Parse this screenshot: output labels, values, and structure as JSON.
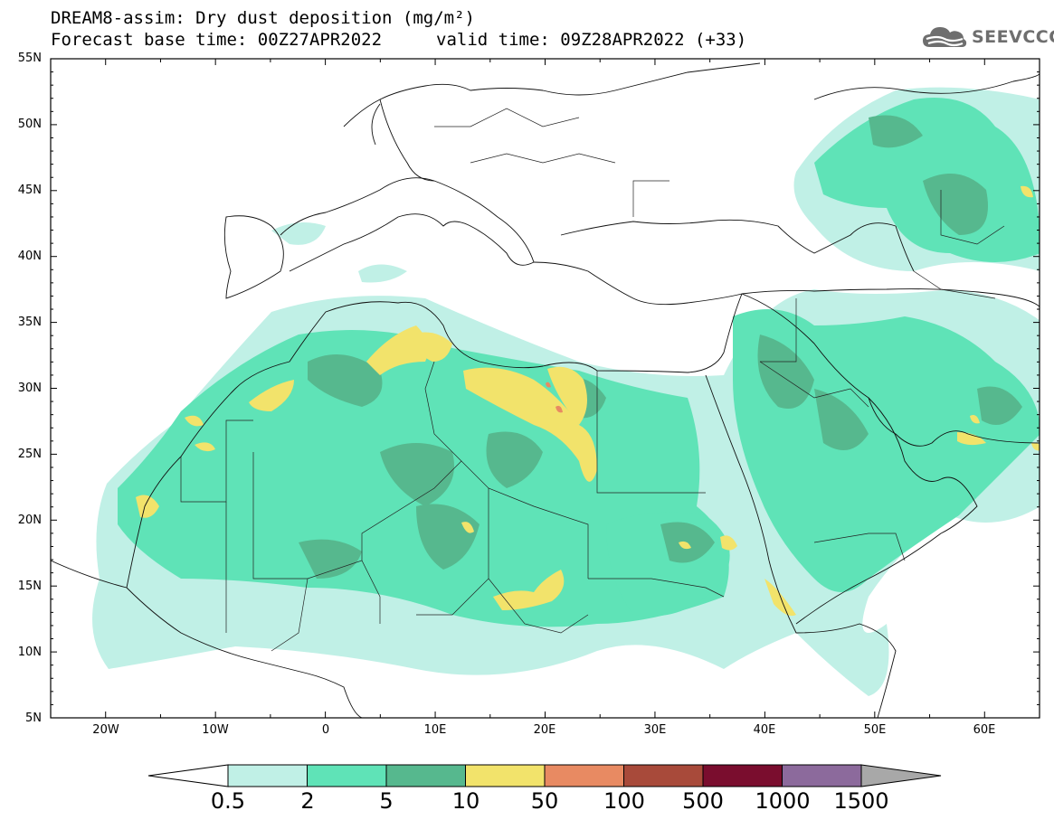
{
  "header": {
    "title_line1": "DREAM8-assim: Dry dust deposition (mg/m²)",
    "title_line2": "Forecast base time: 00Z27APR2022",
    "valid_time": "valid time: 09Z28APR2022 (+33)"
  },
  "logo": {
    "text": "SEEVCCC",
    "icon": "cloud-logo-icon",
    "color": "#6e6e6e"
  },
  "map": {
    "projection": "lat-lon",
    "lon_range": [
      -25,
      65
    ],
    "lat_range": [
      5,
      55
    ],
    "lat_labels": [
      "5N",
      "10N",
      "15N",
      "20N",
      "25N",
      "30N",
      "35N",
      "40N",
      "45N",
      "50N",
      "55N"
    ],
    "lon_labels": [
      "20W",
      "10W",
      "0",
      "10E",
      "20E",
      "30E",
      "40E",
      "50E",
      "60E"
    ]
  },
  "colorbar": {
    "levels": [
      "0.5",
      "2",
      "5",
      "10",
      "50",
      "100",
      "500",
      "1000",
      "1500"
    ],
    "colors": [
      "#c0f0e6",
      "#5fe3b7",
      "#56b88e",
      "#f2e36b",
      "#e88a62",
      "#a84a3a",
      "#7a0d2e",
      "#8c6a9c",
      "#a8a8a8"
    ],
    "under_color": "#ffffff"
  }
}
